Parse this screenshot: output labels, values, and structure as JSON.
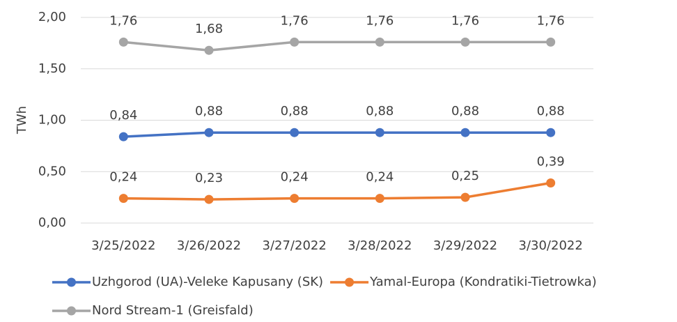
{
  "chart_data": {
    "type": "line",
    "y_label": "TWh",
    "categories": [
      "3/25/2022",
      "3/26/2022",
      "3/27/2022",
      "3/28/2022",
      "3/29/2022",
      "3/30/2022"
    ],
    "series": [
      {
        "name": "Uzhgorod (UA)-Veleke Kapusany (SK)",
        "color": "#4472c4",
        "values": [
          0.84,
          0.88,
          0.88,
          0.88,
          0.88,
          0.88
        ],
        "value_labels": [
          "0,84",
          "0,88",
          "0,88",
          "0,88",
          "0,88",
          "0,88"
        ]
      },
      {
        "name": "Yamal-Europa (Kondratiki-Tietrowka)",
        "color": "#ed7d31",
        "values": [
          0.24,
          0.23,
          0.24,
          0.24,
          0.25,
          0.39
        ],
        "value_labels": [
          "0,24",
          "0,23",
          "0,24",
          "0,24",
          "0,25",
          "0,39"
        ]
      },
      {
        "name": "Nord Stream-1 (Greisfald)",
        "color": "#a5a5a5",
        "values": [
          1.76,
          1.68,
          1.76,
          1.76,
          1.76,
          1.76
        ],
        "value_labels": [
          "1,76",
          "1,68",
          "1,76",
          "1,76",
          "1,76",
          "1,76"
        ]
      }
    ],
    "ylim": [
      0,
      2
    ],
    "yticks": [
      {
        "value": 0,
        "label": "0,00"
      },
      {
        "value": 0.5,
        "label": "0,50"
      },
      {
        "value": 1,
        "label": "1,00"
      },
      {
        "value": 1.5,
        "label": "1,50"
      },
      {
        "value": 2,
        "label": "2,00"
      }
    ],
    "grid": true,
    "legend": "bottom"
  }
}
